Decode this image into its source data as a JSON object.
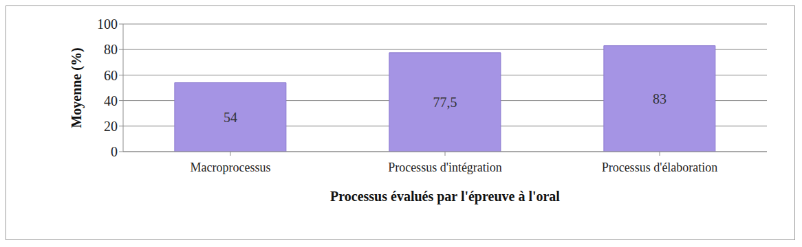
{
  "chart_data": {
    "type": "bar",
    "categories": [
      "Macroprocessus",
      "Processus d'intégration",
      "Processus d'élaboration"
    ],
    "values": [
      54,
      77.5,
      83
    ],
    "value_labels": [
      "54",
      "77,5",
      "83"
    ],
    "color": "#a594e4",
    "ylim": [
      0,
      100
    ],
    "yticks": [
      0,
      20,
      40,
      60,
      80,
      100
    ],
    "grid": true,
    "data_labels": true,
    "x_label": "Processus évalués par l'épreuve à l'oral",
    "y_label": "Moyenne (%)"
  }
}
